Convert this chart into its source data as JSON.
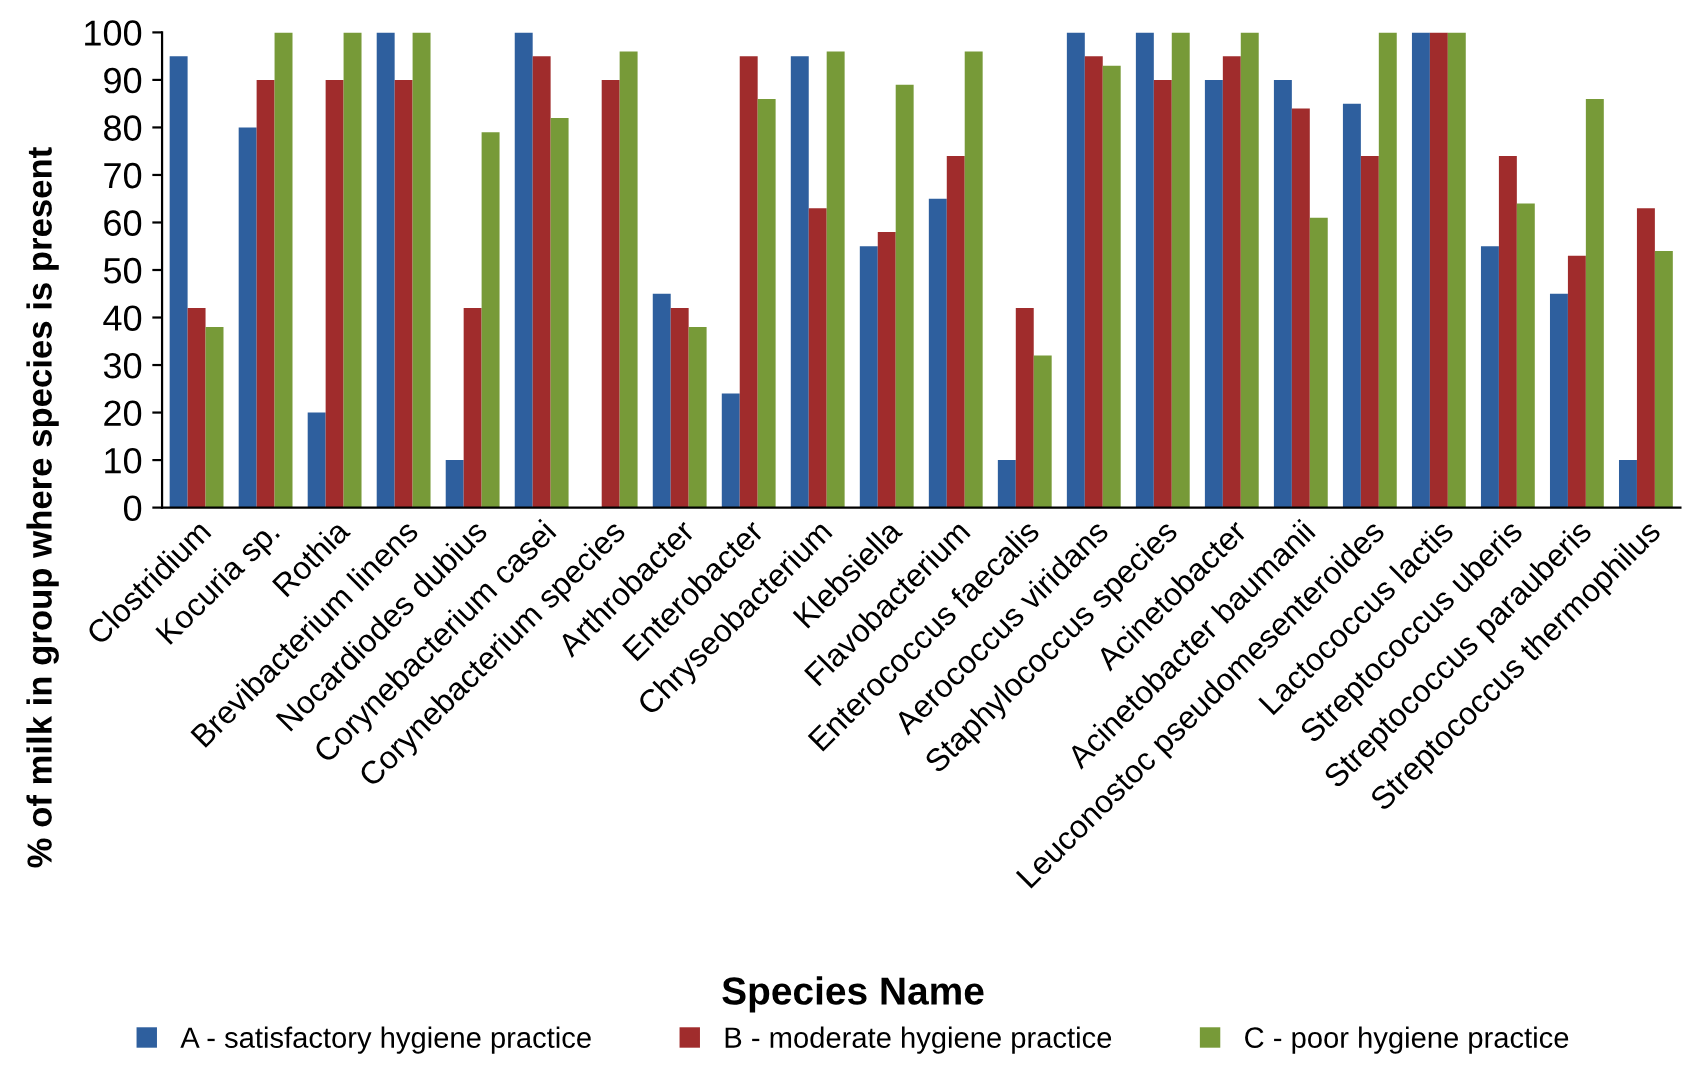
{
  "chart_data": {
    "type": "bar",
    "xlabel": "Species Name",
    "ylabel": "% of milk in group where species is present",
    "categories": [
      "Clostridium",
      "Kocuria sp.",
      "Rothia",
      "Brevibacterium linens",
      "Nocardiodes dubius",
      "Corynebacterium casei",
      "Corynebacterium species",
      "Arthrobacter",
      "Enterobacter",
      "Chryseobacterium",
      "Klebsiella",
      "Flavobacterium",
      "Enterococcus faecalis",
      "Aerococcus viridans",
      "Staphylococcus species",
      "Acinetobacter",
      "Acinetobacter baumanii",
      "Leuconostoc pseudomesenteroides",
      "Lactococcus lactis",
      "Streptococcus uberis",
      "Streptococcus parauberis",
      "Streptococcus thermophilus"
    ],
    "series": [
      {
        "name": "A - satisfactory hygiene practice",
        "color": "#2e5f9e",
        "values": [
          95,
          80,
          20,
          100,
          10,
          100,
          0,
          45,
          24,
          95,
          55,
          65,
          10,
          100,
          100,
          90,
          90,
          85,
          100,
          55,
          45,
          10
        ]
      },
      {
        "name": "B - moderate hygiene practice",
        "color": "#a02c2c",
        "values": [
          42,
          90,
          90,
          90,
          42,
          95,
          90,
          42,
          95,
          63,
          58,
          74,
          42,
          95,
          90,
          95,
          84,
          74,
          100,
          74,
          53,
          63
        ]
      },
      {
        "name": "C - poor hygiene practice",
        "color": "#779a38",
        "values": [
          38,
          100,
          100,
          100,
          79,
          82,
          96,
          38,
          86,
          96,
          89,
          96,
          32,
          93,
          100,
          100,
          61,
          100,
          100,
          64,
          86,
          54
        ]
      }
    ],
    "ylim": [
      0,
      100
    ],
    "yticks": [
      0,
      10,
      20,
      30,
      40,
      50,
      60,
      70,
      80,
      90,
      100
    ],
    "grid": false,
    "legend": "bottom"
  }
}
